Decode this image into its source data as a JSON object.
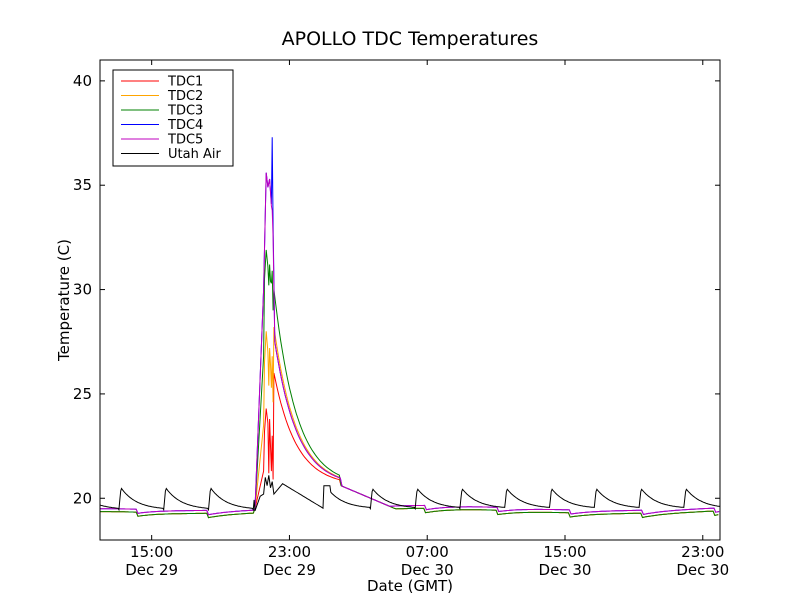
{
  "chart_data": {
    "type": "line",
    "title": "APOLLO TDC Temperatures",
    "xlabel": "Date (GMT)",
    "ylabel": "Temperature (C)",
    "ylim": [
      18,
      41
    ],
    "xlim_hours": [
      12,
      48
    ],
    "x_unit": "hours since Dec 29 00:00 GMT",
    "yticks": [
      20,
      25,
      30,
      35,
      40
    ],
    "xticks": [
      {
        "x": 15,
        "time": "15:00",
        "date": "Dec 29"
      },
      {
        "x": 23,
        "time": "23:00",
        "date": "Dec 29"
      },
      {
        "x": 31,
        "time": "07:00",
        "date": "Dec 30"
      },
      {
        "x": 39,
        "time": "15:00",
        "date": "Dec 30"
      },
      {
        "x": 47,
        "time": "23:00",
        "date": "Dec 30"
      }
    ],
    "legend_position": "top-left",
    "series": [
      {
        "name": "TDC1",
        "color": "#ff0000",
        "x": [
          21.0,
          21.5,
          21.55,
          21.65,
          21.75,
          21.8,
          21.85,
          21.9,
          21.95,
          22.0,
          22.05,
          22.1
        ],
        "y": [
          19.5,
          21.3,
          23.2,
          24.3,
          23.6,
          21.2,
          23.8,
          22.5,
          21.3,
          23.0,
          20.9,
          26.0
        ]
      },
      {
        "name": "TDC2",
        "color": "#ffa500",
        "x": [
          21.0,
          21.5,
          21.55,
          21.65,
          21.75,
          21.8,
          21.85,
          21.9,
          21.95,
          22.0,
          22.05,
          22.1
        ],
        "y": [
          19.5,
          23.5,
          26.5,
          28.0,
          27.0,
          25.4,
          27.2,
          26.4,
          25.3,
          26.8,
          24.6,
          28.2
        ]
      },
      {
        "name": "TDC3",
        "color": "#008000",
        "x": [
          21.0,
          21.5,
          21.55,
          21.65,
          21.75,
          21.8,
          21.85,
          21.9,
          21.95,
          22.0,
          22.05,
          22.1
        ],
        "y": [
          19.5,
          26.8,
          30.5,
          31.9,
          31.1,
          30.2,
          31.2,
          30.4,
          30.3,
          30.9,
          29.0,
          30.0
        ]
      },
      {
        "name": "TDC4",
        "color": "#0000ff",
        "x": [
          21.0,
          21.5,
          21.65,
          21.75,
          21.85,
          21.95,
          22.0,
          22.05,
          22.1,
          22.15
        ],
        "y": [
          19.5,
          30.0,
          35.6,
          34.9,
          35.3,
          34.1,
          37.3,
          33.0,
          30.5,
          27.5
        ]
      },
      {
        "name": "TDC5",
        "color": "#bf00bf",
        "x": [
          21.0,
          21.5,
          21.65,
          21.75,
          21.85,
          21.95,
          22.0,
          22.05,
          22.1,
          22.15
        ],
        "y": [
          19.5,
          30.0,
          35.6,
          34.9,
          35.3,
          34.0,
          33.8,
          32.5,
          30.0,
          27.5
        ]
      },
      {
        "name": "Utah Air",
        "color": "#000000",
        "x": [
          21.0,
          21.3,
          21.5,
          21.6,
          21.7,
          21.8,
          21.9,
          22.0,
          22.1,
          22.3,
          22.6
        ],
        "y": [
          19.4,
          20.1,
          20.2,
          21.0,
          20.6,
          21.1,
          20.5,
          20.8,
          20.2,
          20.4,
          20.7
        ]
      }
    ]
  }
}
